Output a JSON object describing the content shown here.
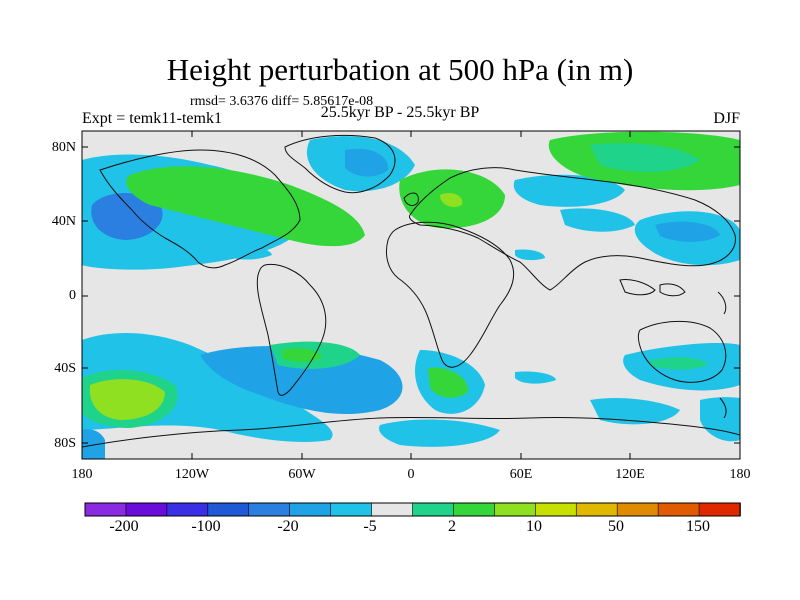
{
  "title": "Height perturbation at 500 hPa (in m)",
  "stats": "rmsd= 3.6376 diff= 5.85617e-08",
  "left_label": "Expt = temk11-temk1",
  "center_label": "25.5kyr BP - 25.5kyr BP",
  "right_label": "DJF",
  "lat_labels": [
    "80N",
    "40N",
    "0",
    "40S",
    "80S"
  ],
  "lon_labels": [
    "180",
    "120W",
    "60W",
    "0",
    "60E",
    "120E",
    "180"
  ],
  "colorbar": {
    "colors": [
      "#8a2be2",
      "#6a0ddb",
      "#3b2fe6",
      "#1f5ad6",
      "#2a7fe0",
      "#1fa3e6",
      "#20c2e8",
      "#e6e6e6",
      "#1fd38a",
      "#35d63a",
      "#8ee020",
      "#c8e000",
      "#e0b800",
      "#e08a00",
      "#e05a00",
      "#e02800"
    ],
    "labels": [
      "-200",
      "-100",
      "-20",
      "-5",
      "2",
      "10",
      "50",
      "150"
    ]
  },
  "palette": {
    "neutral": "#e6e6e6",
    "light_blue": "#20c2e8",
    "mid_blue": "#1fa3e6",
    "blue": "#2a7fe0",
    "dark_blue": "#1f5ad6",
    "teal_green": "#1fd38a",
    "green": "#35d63a",
    "yellow_green": "#8ee020",
    "coastline": "#111111"
  }
}
